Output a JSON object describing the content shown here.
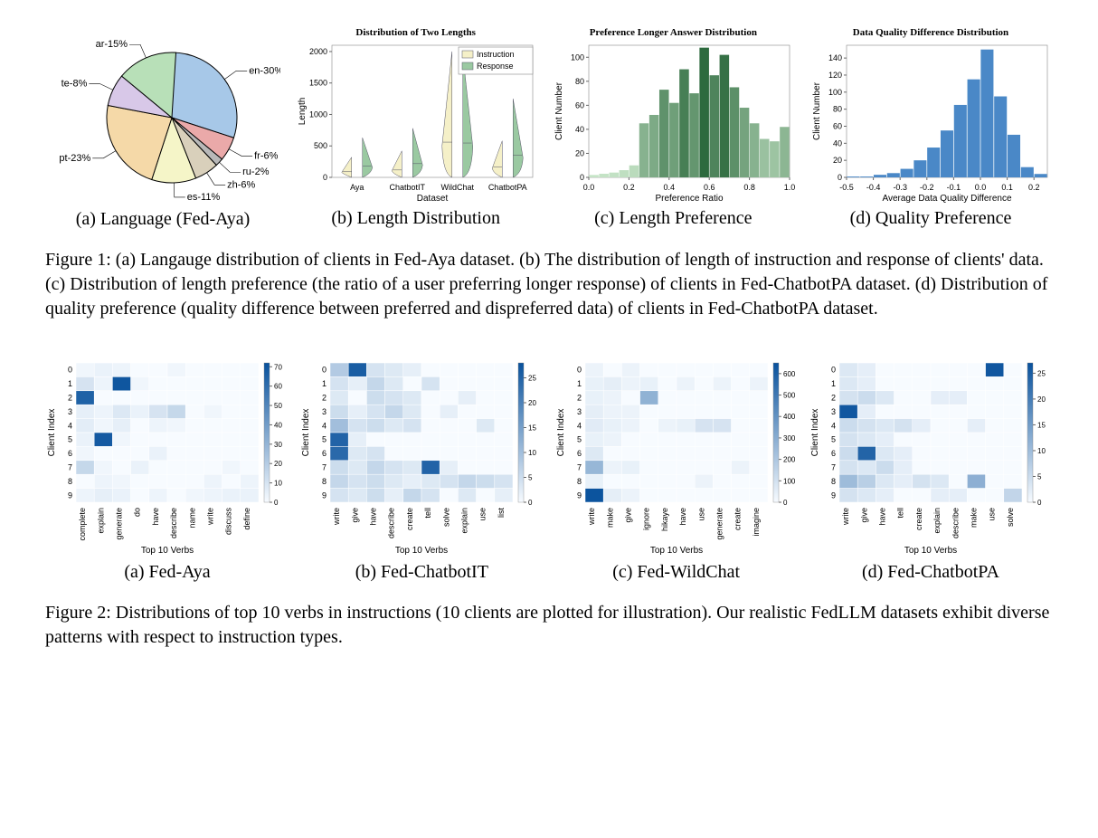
{
  "figure1": {
    "panels": {
      "a": {
        "label": "(a) Language (Fed-Aya)",
        "pie": {
          "slices": [
            {
              "name": "en",
              "pct": 30,
              "color": "#a7c8e8"
            },
            {
              "name": "fr",
              "pct": 6,
              "color": "#eaa9a9"
            },
            {
              "name": "ru",
              "pct": 2,
              "color": "#b8b8b8"
            },
            {
              "name": "zh",
              "pct": 6,
              "color": "#d9d0bb"
            },
            {
              "name": "es",
              "pct": 11,
              "color": "#f5f5c8"
            },
            {
              "name": "pt",
              "pct": 23,
              "color": "#f5d9a8"
            },
            {
              "name": "te",
              "pct": 8,
              "color": "#d8c8e8"
            },
            {
              "name": "ar",
              "pct": 15,
              "color": "#b8e0b8"
            }
          ],
          "stroke": "#000000",
          "label_fontsize": 11
        }
      },
      "b": {
        "label": "(b) Length Distribution",
        "chart": {
          "title": "Distribution of Two Lengths",
          "ylabel": "Length",
          "xlabel": "Dataset",
          "ylim": [
            0,
            2100
          ],
          "yticks": [
            0,
            500,
            1000,
            1500,
            2000
          ],
          "datasets": [
            "Aya",
            "ChatbotIT",
            "WildChat",
            "ChatbotPA"
          ],
          "series": [
            {
              "name": "Instruction",
              "color": "#f5f0c8",
              "heights": [
                320,
                420,
                2000,
                580
              ]
            },
            {
              "name": "Response",
              "color": "#9ac9a1",
              "heights": [
                630,
                780,
                1950,
                1250
              ]
            }
          ]
        }
      },
      "c": {
        "label": "(c) Length Preference",
        "chart": {
          "title": "Preference Longer Answer Distribution",
          "ylabel": "Client Number",
          "xlabel": "Preference Ratio",
          "xlim": [
            0.0,
            1.0
          ],
          "xticks": [
            0.0,
            0.2,
            0.4,
            0.6,
            0.8,
            1.0
          ],
          "ylim": [
            0,
            110
          ],
          "yticks": [
            0,
            20,
            40,
            60,
            80,
            100
          ],
          "bins": [
            {
              "x": 0.025,
              "v": 2
            },
            {
              "x": 0.075,
              "v": 3
            },
            {
              "x": 0.125,
              "v": 4
            },
            {
              "x": 0.175,
              "v": 6
            },
            {
              "x": 0.225,
              "v": 10
            },
            {
              "x": 0.275,
              "v": 45
            },
            {
              "x": 0.325,
              "v": 52
            },
            {
              "x": 0.375,
              "v": 73
            },
            {
              "x": 0.425,
              "v": 62
            },
            {
              "x": 0.475,
              "v": 90
            },
            {
              "x": 0.525,
              "v": 70
            },
            {
              "x": 0.575,
              "v": 108
            },
            {
              "x": 0.625,
              "v": 85
            },
            {
              "x": 0.675,
              "v": 102
            },
            {
              "x": 0.725,
              "v": 75
            },
            {
              "x": 0.775,
              "v": 58
            },
            {
              "x": 0.825,
              "v": 45
            },
            {
              "x": 0.875,
              "v": 32
            },
            {
              "x": 0.925,
              "v": 30
            },
            {
              "x": 0.975,
              "v": 42
            }
          ],
          "bar_color_dark": "#2d6a3e",
          "bar_color_light": "#c8e6c9"
        }
      },
      "d": {
        "label": "(d) Quality Preference",
        "chart": {
          "title": "Data Quality Difference Distribution",
          "ylabel": "Client Number",
          "xlabel": "Average Data Quality Difference",
          "xlim": [
            -0.5,
            0.25
          ],
          "xticks": [
            -0.5,
            -0.4,
            -0.3,
            -0.2,
            -0.1,
            0.0,
            0.1,
            0.2
          ],
          "ylim": [
            0,
            155
          ],
          "yticks": [
            0,
            20,
            40,
            60,
            80,
            100,
            120,
            140
          ],
          "bins": [
            {
              "x": -0.475,
              "v": 1
            },
            {
              "x": -0.425,
              "v": 1
            },
            {
              "x": -0.375,
              "v": 3
            },
            {
              "x": -0.325,
              "v": 5
            },
            {
              "x": -0.275,
              "v": 10
            },
            {
              "x": -0.225,
              "v": 20
            },
            {
              "x": -0.175,
              "v": 35
            },
            {
              "x": -0.125,
              "v": 55
            },
            {
              "x": -0.075,
              "v": 85
            },
            {
              "x": -0.025,
              "v": 115
            },
            {
              "x": 0.025,
              "v": 150
            },
            {
              "x": 0.075,
              "v": 95
            },
            {
              "x": 0.125,
              "v": 50
            },
            {
              "x": 0.175,
              "v": 12
            },
            {
              "x": 0.225,
              "v": 4
            }
          ],
          "bar_color": "#4a88c7"
        }
      }
    },
    "caption_prefix": "Figure 1:",
    "caption": "(a) Langauge distribution of clients in Fed-Aya dataset. (b) The distribution of length of instruction and response of clients' data. (c) Distribution of length preference (the ratio of a user preferring longer response) of clients in Fed-ChatbotPA dataset. (d) Distribution of quality preference (quality difference between preferred and dispreferred data) of clients in Fed-ChatbotPA dataset."
  },
  "figure2": {
    "common": {
      "ylabel": "Client Index",
      "xlabel": "Top 10 Verbs",
      "clients": [
        0,
        1,
        2,
        3,
        4,
        5,
        6,
        7,
        8,
        9
      ],
      "cmap_low": "#f7fbff",
      "cmap_high": "#08519c"
    },
    "panels": {
      "a": {
        "label": "(a) Fed-Aya",
        "verbs": [
          "complete",
          "explain",
          "generate",
          "do",
          "have",
          "describe",
          "name",
          "write",
          "discuss",
          "define"
        ],
        "cbar_ticks": [
          0,
          10,
          20,
          30,
          40,
          50,
          60,
          70
        ],
        "vmax": 72,
        "data": [
          [
            2,
            4,
            3,
            0,
            0,
            2,
            0,
            0,
            0,
            0
          ],
          [
            10,
            3,
            70,
            2,
            0,
            0,
            0,
            0,
            0,
            0
          ],
          [
            65,
            0,
            0,
            0,
            0,
            0,
            0,
            0,
            0,
            0
          ],
          [
            5,
            3,
            8,
            4,
            10,
            15,
            0,
            2,
            0,
            0
          ],
          [
            6,
            2,
            5,
            0,
            3,
            2,
            0,
            0,
            0,
            0
          ],
          [
            4,
            68,
            2,
            0,
            0,
            0,
            0,
            0,
            0,
            0
          ],
          [
            2,
            0,
            0,
            0,
            4,
            0,
            0,
            0,
            0,
            0
          ],
          [
            15,
            2,
            0,
            4,
            0,
            0,
            0,
            0,
            2,
            0
          ],
          [
            0,
            3,
            2,
            0,
            0,
            0,
            0,
            3,
            0,
            3
          ],
          [
            3,
            5,
            4,
            0,
            3,
            0,
            2,
            3,
            4,
            4
          ]
        ]
      },
      "b": {
        "label": "(b) Fed-ChatbotIT",
        "verbs": [
          "write",
          "give",
          "have",
          "describe",
          "create",
          "tell",
          "solve",
          "explain",
          "use",
          "list"
        ],
        "cbar_ticks": [
          0,
          5,
          10,
          15,
          20,
          25
        ],
        "vmax": 28,
        "data": [
          [
            8,
            26,
            4,
            3,
            2,
            0,
            0,
            0,
            0,
            0
          ],
          [
            4,
            2,
            6,
            3,
            0,
            4,
            0,
            0,
            0,
            0
          ],
          [
            3,
            0,
            5,
            4,
            3,
            0,
            0,
            2,
            0,
            0
          ],
          [
            5,
            2,
            4,
            6,
            3,
            0,
            2,
            0,
            0,
            0
          ],
          [
            10,
            4,
            5,
            3,
            4,
            0,
            0,
            0,
            3,
            0
          ],
          [
            25,
            2,
            0,
            0,
            0,
            0,
            0,
            0,
            0,
            0
          ],
          [
            24,
            3,
            4,
            0,
            0,
            0,
            0,
            0,
            0,
            0
          ],
          [
            5,
            3,
            6,
            4,
            3,
            25,
            2,
            0,
            0,
            0
          ],
          [
            6,
            4,
            5,
            3,
            2,
            3,
            4,
            6,
            5,
            4
          ],
          [
            4,
            3,
            5,
            2,
            6,
            4,
            0,
            3,
            0,
            2
          ]
        ]
      },
      "c": {
        "label": "(c) Fed-WildChat",
        "verbs": [
          "write",
          "make",
          "give",
          "ignore",
          "hikaye",
          "have",
          "use",
          "generate",
          "create",
          "imagine"
        ],
        "cbar_ticks": [
          0,
          100,
          200,
          300,
          400,
          500,
          600
        ],
        "vmax": 650,
        "data": [
          [
            30,
            0,
            30,
            0,
            0,
            0,
            0,
            0,
            0,
            0
          ],
          [
            40,
            50,
            30,
            40,
            0,
            30,
            0,
            30,
            0,
            30
          ],
          [
            40,
            30,
            0,
            280,
            0,
            0,
            0,
            0,
            0,
            0
          ],
          [
            50,
            30,
            30,
            0,
            0,
            0,
            0,
            0,
            0,
            0
          ],
          [
            60,
            40,
            30,
            0,
            30,
            40,
            90,
            90,
            0,
            0
          ],
          [
            40,
            30,
            0,
            0,
            0,
            0,
            0,
            0,
            0,
            0
          ],
          [
            70,
            0,
            0,
            0,
            0,
            0,
            0,
            0,
            0,
            0
          ],
          [
            260,
            30,
            40,
            0,
            0,
            0,
            0,
            0,
            30,
            0
          ],
          [
            40,
            0,
            0,
            0,
            0,
            0,
            30,
            0,
            0,
            0
          ],
          [
            640,
            50,
            30,
            0,
            0,
            0,
            0,
            0,
            0,
            0
          ]
        ]
      },
      "d": {
        "label": "(d) Fed-ChatbotPA",
        "verbs": [
          "write",
          "give",
          "have",
          "tell",
          "create",
          "explain",
          "describe",
          "make",
          "use",
          "solve"
        ],
        "cbar_ticks": [
          0,
          5,
          10,
          15,
          20,
          25
        ],
        "vmax": 27,
        "data": [
          [
            3,
            2,
            0,
            0,
            0,
            0,
            0,
            0,
            26,
            0
          ],
          [
            3,
            2,
            0,
            0,
            0,
            0,
            0,
            0,
            0,
            0
          ],
          [
            4,
            5,
            3,
            0,
            0,
            2,
            2,
            0,
            0,
            0
          ],
          [
            26,
            2,
            0,
            0,
            0,
            0,
            0,
            0,
            0,
            0
          ],
          [
            5,
            4,
            3,
            4,
            2,
            0,
            0,
            2,
            0,
            0
          ],
          [
            4,
            3,
            2,
            0,
            0,
            0,
            0,
            0,
            0,
            0
          ],
          [
            5,
            24,
            3,
            2,
            0,
            0,
            0,
            0,
            0,
            0
          ],
          [
            4,
            3,
            5,
            2,
            0,
            0,
            0,
            0,
            0,
            0
          ],
          [
            10,
            7,
            3,
            2,
            4,
            3,
            0,
            12,
            0,
            0
          ],
          [
            4,
            3,
            2,
            0,
            0,
            2,
            2,
            0,
            0,
            6
          ]
        ]
      }
    },
    "caption_prefix": "Figure 2:",
    "caption": "Distributions of top 10 verbs in instructions (10 clients are plotted for illustration). Our realistic FedLLM datasets exhibit diverse patterns with respect to instruction types."
  }
}
